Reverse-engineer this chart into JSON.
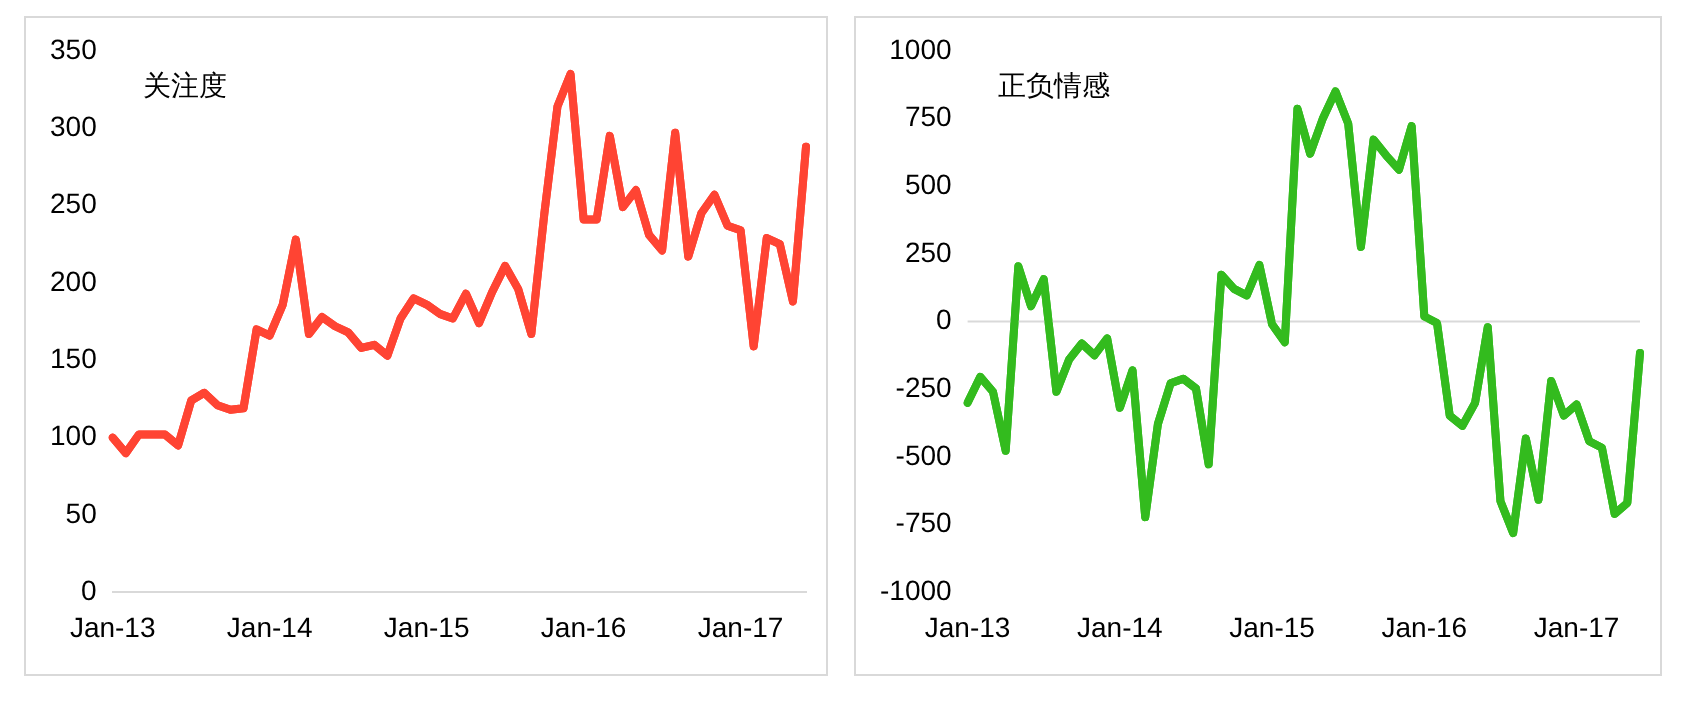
{
  "chart_data": [
    {
      "type": "line",
      "title": "关注度",
      "categories": [
        "Jan-13",
        null,
        null,
        null,
        null,
        null,
        null,
        null,
        null,
        null,
        null,
        null,
        "Jan-14",
        null,
        null,
        null,
        null,
        null,
        null,
        null,
        null,
        null,
        null,
        null,
        "Jan-15",
        null,
        null,
        null,
        null,
        null,
        null,
        null,
        null,
        null,
        null,
        null,
        "Jan-16",
        null,
        null,
        null,
        null,
        null,
        null,
        null,
        null,
        null,
        null,
        null,
        "Jan-17",
        null,
        null,
        null,
        null,
        null
      ],
      "series": [
        {
          "color": "#ff4433",
          "values": [
            100,
            90,
            102,
            102,
            102,
            95,
            124,
            129,
            121,
            118,
            119,
            170,
            166,
            186,
            228,
            167,
            178,
            172,
            168,
            158,
            160,
            153,
            177,
            190,
            186,
            180,
            177,
            193,
            174,
            194,
            211,
            196,
            167,
            245,
            314,
            335,
            241,
            241,
            295,
            249,
            260,
            231,
            221,
            297,
            217,
            245,
            257,
            237,
            234,
            159,
            229,
            225,
            188,
            288
          ]
        }
      ],
      "ylim": [
        0,
        350
      ],
      "yticks": [
        0,
        50,
        100,
        150,
        200,
        250,
        300,
        350
      ],
      "grid": false,
      "marker": "none",
      "line_style": "solid",
      "legend": false
    },
    {
      "type": "line",
      "title": "正负情感",
      "categories": [
        "Jan-13",
        null,
        null,
        null,
        null,
        null,
        null,
        null,
        null,
        null,
        null,
        null,
        "Jan-14",
        null,
        null,
        null,
        null,
        null,
        null,
        null,
        null,
        null,
        null,
        null,
        "Jan-15",
        null,
        null,
        null,
        null,
        null,
        null,
        null,
        null,
        null,
        null,
        null,
        "Jan-16",
        null,
        null,
        null,
        null,
        null,
        null,
        null,
        null,
        null,
        null,
        null,
        "Jan-17",
        null,
        null,
        null,
        null,
        null
      ],
      "series": [
        {
          "color": "#33bb1e",
          "values": [
            -300,
            -204,
            -259,
            -477,
            204,
            57,
            157,
            -259,
            -140,
            -81,
            -124,
            -62,
            -318,
            -180,
            -722,
            -378,
            -228,
            -211,
            -247,
            -527,
            173,
            121,
            97,
            209,
            -10,
            -76,
            786,
            620,
            750,
            850,
            731,
            276,
            672,
            613,
            561,
            722,
            19,
            -5,
            -347,
            -385,
            -300,
            -21,
            -663,
            -781,
            -432,
            -658,
            -219,
            -347,
            -306,
            -442,
            -466,
            -710,
            -670,
            -116
          ]
        }
      ],
      "ylim": [
        -1000,
        1000
      ],
      "yticks": [
        -1000,
        -750,
        -500,
        -250,
        0,
        250,
        500,
        750,
        1000
      ],
      "grid": false,
      "marker": "none",
      "line_style": "solid",
      "legend": false,
      "ref_lines": [
        {
          "axis": "y",
          "value": 0,
          "color": "#d9d9d9"
        }
      ]
    }
  ]
}
